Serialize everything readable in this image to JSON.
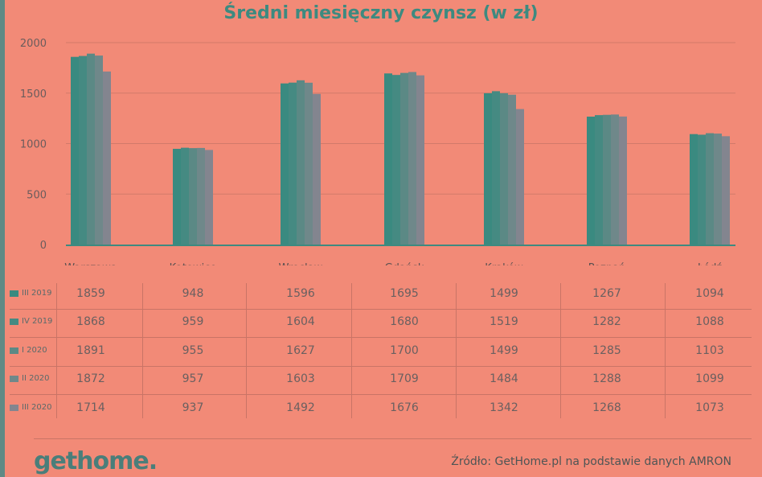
{
  "chart_data": {
    "type": "bar",
    "title": "Średni miesięczny czynsz (w zł)",
    "categories": [
      "Warszawa",
      "Katowice",
      "Wrocław",
      "Gdańsk",
      "Kraków",
      "Poznań",
      "Łódź"
    ],
    "series": [
      {
        "name": "III 2019",
        "color": "#3a8a80",
        "values": [
          1859,
          948,
          1596,
          1695,
          1499,
          1267,
          1094
        ]
      },
      {
        "name": "IV 2019",
        "color": "#458a82",
        "values": [
          1868,
          959,
          1604,
          1680,
          1519,
          1282,
          1088
        ]
      },
      {
        "name": "I 2020",
        "color": "#5b8985",
        "values": [
          1891,
          955,
          1627,
          1700,
          1499,
          1285,
          1103
        ]
      },
      {
        "name": "II 2020",
        "color": "#6f888a",
        "values": [
          1872,
          957,
          1603,
          1709,
          1484,
          1288,
          1099
        ]
      },
      {
        "name": "III 2020",
        "color": "#83858f",
        "values": [
          1714,
          937,
          1492,
          1676,
          1342,
          1268,
          1073
        ]
      }
    ],
    "yticks": [
      "0",
      "500",
      "1000",
      "1500",
      "2000"
    ],
    "ylim": [
      0,
      2000
    ],
    "xlabel": "",
    "ylabel": "",
    "legend": "left (table)"
  },
  "footer": {
    "logo": "gethome.",
    "source": "Źródło: GetHome.pl na podstawie danych AMRON"
  }
}
